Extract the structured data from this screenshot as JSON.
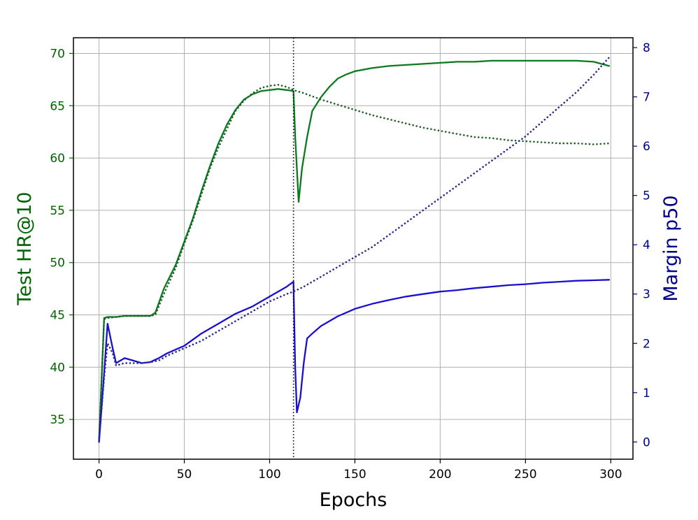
{
  "chart_data": {
    "type": "line",
    "xlabel": "Epochs",
    "ylabel_left": "Test HR@10",
    "ylabel_right": "Margin p50",
    "xlim": [
      -15,
      313
    ],
    "ylim_left": [
      31.2,
      71.5
    ],
    "ylim_right": [
      -0.35,
      8.2
    ],
    "xticks": [
      0,
      50,
      100,
      150,
      200,
      250,
      300
    ],
    "yticks_left": [
      35,
      40,
      45,
      50,
      55,
      60,
      65,
      70
    ],
    "yticks_right": [
      0,
      1,
      2,
      3,
      4,
      5,
      6,
      7,
      8
    ],
    "grid": true,
    "vline_x": 114,
    "colors": {
      "left_axis": "#006400",
      "right_axis": "#00008B",
      "hr_solid": "#0A7A1F",
      "hr_dotted": "#1E5E2A",
      "margin_solid": "#1A0FD0",
      "margin_dotted": "#2A2A8C",
      "grid": "#B0B0B0",
      "vline": "#000000"
    },
    "series": [
      {
        "axis": "left",
        "style": "solid",
        "x": [
          0,
          3,
          5,
          10,
          15,
          20,
          25,
          30,
          33,
          38,
          45,
          50,
          55,
          60,
          65,
          70,
          75,
          80,
          85,
          90,
          95,
          100,
          105,
          110,
          114,
          115,
          117,
          119,
          122,
          125,
          130,
          135,
          140,
          145,
          150,
          160,
          170,
          180,
          190,
          200,
          210,
          220,
          230,
          240,
          250,
          260,
          270,
          280,
          290,
          299
        ],
        "y": [
          33.0,
          44.7,
          44.8,
          44.8,
          44.9,
          44.9,
          44.9,
          44.9,
          45.2,
          47.5,
          49.8,
          52.0,
          54.2,
          56.8,
          59.2,
          61.4,
          63.2,
          64.6,
          65.6,
          66.1,
          66.4,
          66.5,
          66.6,
          66.5,
          66.4,
          62.0,
          55.8,
          59.0,
          62.0,
          64.5,
          65.8,
          66.8,
          67.6,
          68.0,
          68.3,
          68.6,
          68.8,
          68.9,
          69.0,
          69.1,
          69.2,
          69.2,
          69.3,
          69.3,
          69.3,
          69.3,
          69.3,
          69.3,
          69.2,
          68.8
        ]
      },
      {
        "axis": "left",
        "style": "dotted",
        "x": [
          0,
          3,
          5,
          10,
          15,
          20,
          25,
          30,
          33,
          38,
          45,
          50,
          55,
          60,
          65,
          70,
          75,
          80,
          85,
          90,
          95,
          100,
          105,
          110,
          114,
          120,
          130,
          140,
          150,
          160,
          170,
          180,
          190,
          200,
          210,
          220,
          230,
          240,
          250,
          260,
          270,
          280,
          290,
          299
        ],
        "y": [
          33.0,
          44.6,
          44.7,
          44.8,
          44.9,
          44.9,
          44.9,
          44.9,
          45.0,
          47.0,
          49.5,
          51.8,
          54.0,
          56.5,
          59.0,
          61.0,
          62.8,
          64.5,
          65.5,
          66.2,
          66.7,
          66.9,
          67.0,
          66.8,
          66.5,
          66.2,
          65.6,
          65.1,
          64.6,
          64.1,
          63.7,
          63.3,
          62.9,
          62.6,
          62.3,
          62.0,
          61.9,
          61.7,
          61.6,
          61.5,
          61.4,
          61.4,
          61.3,
          61.4
        ]
      },
      {
        "axis": "right",
        "style": "solid",
        "x": [
          0,
          3,
          5,
          8,
          10,
          15,
          20,
          25,
          30,
          35,
          40,
          50,
          60,
          70,
          80,
          90,
          100,
          105,
          110,
          114,
          115,
          116,
          118,
          120,
          122,
          125,
          130,
          140,
          150,
          160,
          170,
          180,
          190,
          200,
          210,
          220,
          230,
          240,
          250,
          260,
          270,
          280,
          290,
          299
        ],
        "y": [
          0.0,
          1.4,
          2.4,
          1.9,
          1.6,
          1.7,
          1.65,
          1.6,
          1.62,
          1.7,
          1.8,
          1.95,
          2.2,
          2.4,
          2.6,
          2.75,
          2.95,
          3.05,
          3.15,
          3.25,
          1.5,
          0.6,
          0.9,
          1.6,
          2.1,
          2.2,
          2.35,
          2.55,
          2.7,
          2.8,
          2.88,
          2.95,
          3.0,
          3.05,
          3.08,
          3.12,
          3.15,
          3.18,
          3.2,
          3.23,
          3.25,
          3.27,
          3.28,
          3.29
        ]
      },
      {
        "axis": "right",
        "style": "dotted",
        "x": [
          0,
          3,
          5,
          8,
          10,
          15,
          20,
          25,
          30,
          35,
          40,
          50,
          60,
          70,
          80,
          90,
          100,
          110,
          114,
          120,
          130,
          140,
          150,
          160,
          170,
          180,
          190,
          200,
          210,
          220,
          230,
          240,
          250,
          260,
          270,
          280,
          290,
          299
        ],
        "y": [
          0.0,
          1.3,
          2.0,
          1.8,
          1.55,
          1.6,
          1.6,
          1.6,
          1.62,
          1.65,
          1.75,
          1.9,
          2.05,
          2.25,
          2.45,
          2.65,
          2.85,
          3.0,
          3.05,
          3.15,
          3.35,
          3.55,
          3.75,
          3.95,
          4.2,
          4.45,
          4.7,
          4.95,
          5.2,
          5.45,
          5.7,
          5.95,
          6.2,
          6.5,
          6.8,
          7.1,
          7.45,
          7.8
        ]
      }
    ]
  }
}
